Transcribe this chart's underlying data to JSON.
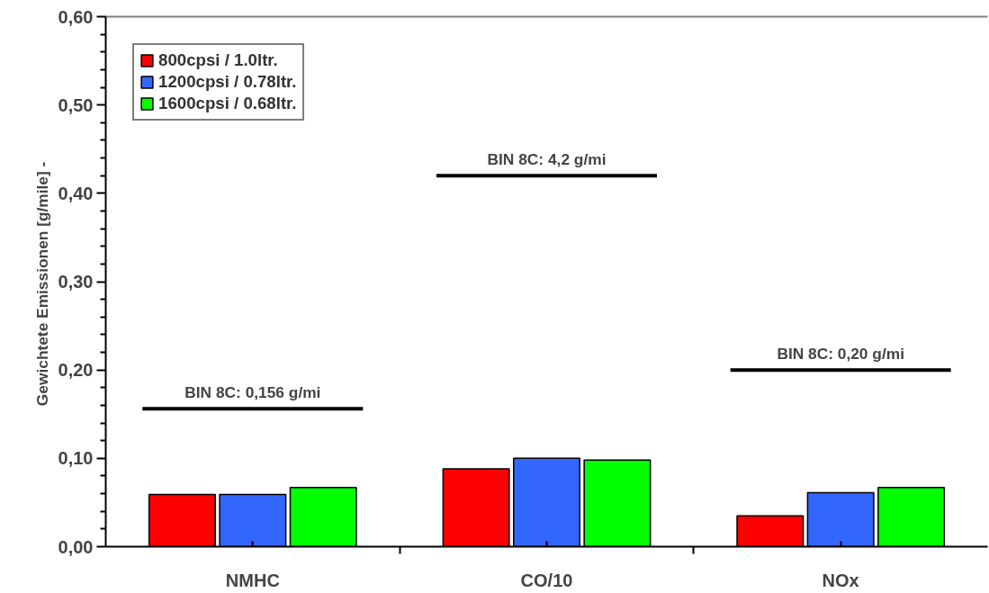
{
  "chart_data": {
    "type": "bar",
    "ylabel": "Gewichtete Emissionen [g/mile]  -",
    "categories": [
      "NMHC",
      "CO/10",
      "NOx"
    ],
    "series": [
      {
        "name": "800cpsi / 1.0ltr.",
        "color": "#ff0000",
        "values": [
          0.059,
          0.088,
          0.035
        ]
      },
      {
        "name": "1200cpsi / 0.78ltr.",
        "color": "#3366ff",
        "values": [
          0.059,
          0.1,
          0.061
        ]
      },
      {
        "name": "1600cpsi / 0.68ltr.",
        "color": "#00ff00",
        "values": [
          0.067,
          0.098,
          0.067
        ]
      }
    ],
    "ylim": [
      0,
      0.6
    ],
    "yticks": [
      {
        "value": 0,
        "label": "0,00"
      },
      {
        "value": 0.1,
        "label": "0,10"
      },
      {
        "value": 0.2,
        "label": "0,20"
      },
      {
        "value": 0.3,
        "label": "0,30"
      },
      {
        "value": 0.4,
        "label": "0,40"
      },
      {
        "value": 0.5,
        "label": "0,50"
      },
      {
        "value": 0.6,
        "label": "0,60"
      }
    ],
    "ref_lines": [
      {
        "axis": "y",
        "value": 0.156,
        "label": "BIN 8C: 0,156 g/mi",
        "color": "#000000"
      },
      {
        "axis": "y",
        "value": 0.42,
        "color": "#000000"
      },
      {
        "axis": "y",
        "value": 0.2,
        "label": "BIN 8C: 0,20 g/mi",
        "color": "#000000"
      }
    ],
    "annotations": [
      {
        "text": "BIN 8C: 4,2 g/mi",
        "x": "CO/10",
        "y": 0.42
      }
    ],
    "grid": false,
    "legend": "top left"
  }
}
